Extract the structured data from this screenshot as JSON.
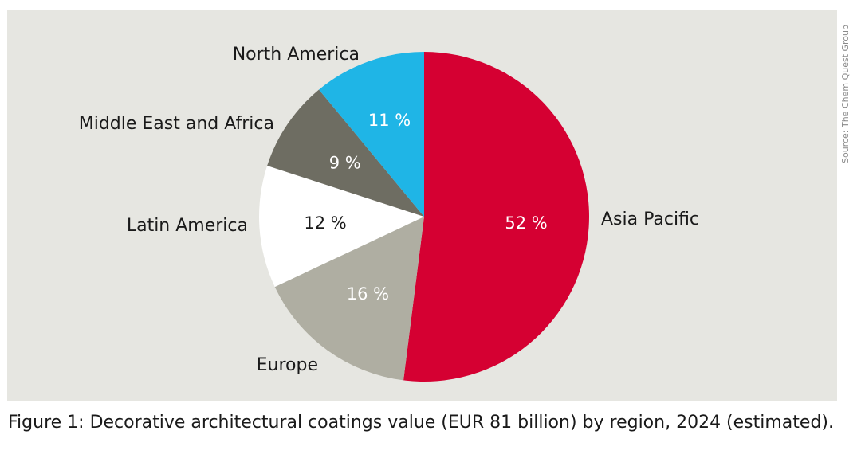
{
  "chart_data": {
    "type": "pie",
    "title": "Decorative architectural coatings value (EUR 81 billion) by region, 2024 (estimated)",
    "slices": [
      {
        "label": "Asia Pacific",
        "value": 52,
        "value_label": "52 %",
        "color": "#d50032",
        "text_color": "#ffffff"
      },
      {
        "label": "Europe",
        "value": 16,
        "value_label": "16 %",
        "color": "#afaea2",
        "text_color": "#ffffff"
      },
      {
        "label": "Latin America",
        "value": 12,
        "value_label": "12 %",
        "color": "#ffffff",
        "text_color": "#1a1a1a"
      },
      {
        "label": "Middle East and Africa",
        "value": 9,
        "value_label": "9 %",
        "color": "#6e6d62",
        "text_color": "#ffffff"
      },
      {
        "label": "North America",
        "value": 11,
        "value_label": "11 %",
        "color": "#1fb5e6",
        "text_color": "#ffffff"
      }
    ],
    "start": "12 o'clock",
    "direction": "clockwise"
  },
  "caption": "Figure 1: Decorative architectural coatings value (EUR 81 billion) by region, 2024 (estimated).",
  "source": "Source: The Chem Quest Group",
  "colors": {
    "panel_background": "#e6e6e1",
    "page_background": "#ffffff"
  }
}
